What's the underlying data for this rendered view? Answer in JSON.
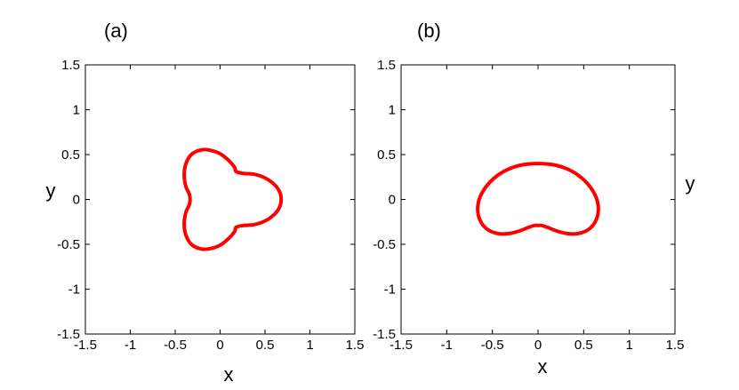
{
  "chart_data": [
    {
      "type": "line",
      "panel_label": "(a)",
      "xlabel": "x",
      "ylabel": "y",
      "xlim": [
        -1.5,
        1.5
      ],
      "ylim": [
        -1.5,
        1.5
      ],
      "xticks": [
        "-1.5",
        "-1",
        "-0.5",
        "0",
        "0.5",
        "1",
        "1.5"
      ],
      "yticks": [
        "1.5",
        "1",
        "0.5",
        "0",
        "-0.5",
        "-1",
        "-1.5"
      ],
      "grid": false,
      "curve": {
        "color": "#ff0000",
        "shape": "three-lobed closed curve",
        "x": [
          0.68,
          0.66,
          0.6,
          0.5,
          0.38,
          0.26,
          0.18,
          0.16,
          0.1,
          0.0,
          -0.12,
          -0.22,
          -0.32,
          -0.38,
          -0.4,
          -0.38,
          -0.34,
          -0.34,
          -0.38,
          -0.4,
          -0.38,
          -0.32,
          -0.22,
          -0.12,
          0.0,
          0.1,
          0.16,
          0.18,
          0.26,
          0.38,
          0.5,
          0.6,
          0.66,
          0.68
        ],
        "y": [
          0.0,
          0.09,
          0.17,
          0.24,
          0.28,
          0.29,
          0.31,
          0.36,
          0.43,
          0.51,
          0.55,
          0.55,
          0.5,
          0.4,
          0.27,
          0.14,
          0.05,
          -0.05,
          -0.14,
          -0.27,
          -0.4,
          -0.5,
          -0.55,
          -0.55,
          -0.51,
          -0.43,
          -0.36,
          -0.31,
          -0.29,
          -0.28,
          -0.24,
          -0.17,
          -0.09,
          0.0
        ]
      }
    },
    {
      "type": "line",
      "panel_label": "(b)",
      "xlabel": "x",
      "ylabel": "y",
      "xlim": [
        -1.5,
        1.5
      ],
      "ylim": [
        -1.5,
        1.5
      ],
      "xticks": [
        "-1.5",
        "-1",
        "-0.5",
        "0",
        "0.5",
        "1",
        "1.5"
      ],
      "yticks": [
        "1.5",
        "1",
        "0.5",
        "0",
        "-0.5",
        "-1",
        "-1.5"
      ],
      "grid": false,
      "curve": {
        "color": "#ff0000",
        "shape": "kidney-shaped closed curve",
        "x": [
          0.0,
          0.2,
          0.38,
          0.52,
          0.62,
          0.66,
          0.64,
          0.56,
          0.44,
          0.32,
          0.2,
          0.1,
          0.04,
          0.0,
          -0.04,
          -0.1,
          -0.2,
          -0.32,
          -0.44,
          -0.56,
          -0.64,
          -0.66,
          -0.62,
          -0.52,
          -0.38,
          -0.2,
          0.0
        ],
        "y": [
          0.4,
          0.38,
          0.31,
          0.2,
          0.06,
          -0.08,
          -0.22,
          -0.33,
          -0.38,
          -0.38,
          -0.35,
          -0.31,
          -0.29,
          -0.29,
          -0.29,
          -0.31,
          -0.35,
          -0.38,
          -0.38,
          -0.33,
          -0.22,
          -0.08,
          0.06,
          0.2,
          0.31,
          0.38,
          0.4
        ]
      }
    }
  ]
}
